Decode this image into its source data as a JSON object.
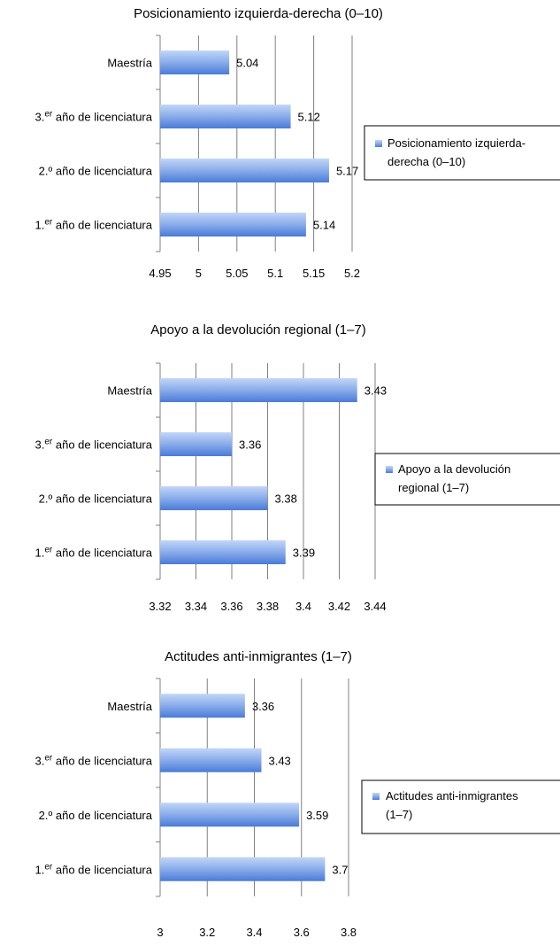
{
  "colors": {
    "bar_light": "#a7c3f2",
    "bar_dark": "#4778d9",
    "grid": "#808080"
  },
  "chart_data": [
    {
      "type": "bar",
      "orientation": "horizontal",
      "title": "Posicionamiento izquierda-derecha (0–10)",
      "categories": [
        {
          "main": "Maestría",
          "sup": "",
          "rest": ""
        },
        {
          "main": "3.",
          "sup": "er",
          "rest": " año de licenciatura"
        },
        {
          "main": "2.º año de licenciatura",
          "sup": "",
          "rest": ""
        },
        {
          "main": "1.",
          "sup": "er",
          "rest": " año de licenciatura"
        }
      ],
      "series": [
        {
          "name": "Posicionamiento izquierda-derecha (0–10)",
          "values": [
            5.04,
            5.12,
            5.17,
            5.14
          ]
        }
      ],
      "xlim": [
        4.95,
        5.2
      ],
      "ticks": [
        "4.95",
        "5",
        "5.05",
        "5.1",
        "5.15",
        "5.2"
      ],
      "data_labels": [
        "5.04",
        "5.12",
        "5.17",
        "5.14"
      ],
      "legend_lines": [
        "Posicionamiento izquierda-",
        "derecha (0–10)"
      ],
      "grid": true,
      "legend_position": "right"
    },
    {
      "type": "bar",
      "orientation": "horizontal",
      "title": "Apoyo a la devolución regional (1–7)",
      "categories": [
        {
          "main": "Maestría",
          "sup": "",
          "rest": ""
        },
        {
          "main": "3.",
          "sup": "er",
          "rest": " año de licenciatura"
        },
        {
          "main": "2.º año de licenciatura",
          "sup": "",
          "rest": ""
        },
        {
          "main": "1.",
          "sup": "er",
          "rest": " año de licenciatura"
        }
      ],
      "series": [
        {
          "name": "Apoyo a la devolución regional (1–7)",
          "values": [
            3.43,
            3.36,
            3.38,
            3.39
          ]
        }
      ],
      "xlim": [
        3.32,
        3.44
      ],
      "ticks": [
        "3.32",
        "3.34",
        "3.36",
        "3.38",
        "3.4",
        "3.42",
        "3.44"
      ],
      "data_labels": [
        "3.43",
        "3.36",
        "3.38",
        "3.39"
      ],
      "legend_lines": [
        "Apoyo a la devolución",
        "regional (1–7)"
      ],
      "grid": true,
      "legend_position": "right"
    },
    {
      "type": "bar",
      "orientation": "horizontal",
      "title": "Actitudes anti-inmigrantes (1–7)",
      "categories": [
        {
          "main": "Maestría",
          "sup": "",
          "rest": ""
        },
        {
          "main": "3.",
          "sup": "er",
          "rest": " año de licenciatura"
        },
        {
          "main": "2.º año de licenciatura",
          "sup": "",
          "rest": ""
        },
        {
          "main": "1.",
          "sup": "er",
          "rest": " año de licenciatura"
        }
      ],
      "series": [
        {
          "name": "Actitudes anti-inmigrantes (1–7)",
          "values": [
            3.36,
            3.43,
            3.59,
            3.7
          ]
        }
      ],
      "xlim": [
        3,
        3.8
      ],
      "ticks": [
        "3",
        "3.2",
        "3.4",
        "3.6",
        "3.8"
      ],
      "data_labels": [
        "3.36",
        "3.43",
        "3.59",
        "3.7"
      ],
      "legend_lines": [
        "Actitudes anti-inmigrantes",
        "(1–7)"
      ],
      "grid": true,
      "legend_position": "right"
    }
  ]
}
